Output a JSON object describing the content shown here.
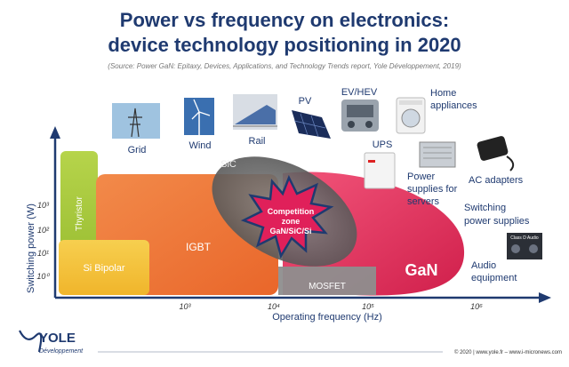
{
  "title_line1": "Power vs frequency on electronics:",
  "title_line2": "device technology positioning in 2020",
  "source": "(Source: Power GaN: Epitaxy, Devices, Applications, and Technology Trends report, Yole Développement, 2019)",
  "axes": {
    "y_label": "Switching power (W)",
    "x_label": "Operating frequency (Hz)",
    "y_ticks": [
      "10⁰",
      "10¹",
      "10²",
      "10³"
    ],
    "x_ticks": [
      "10³",
      "10⁴",
      "10⁵",
      "10⁶"
    ]
  },
  "regions": {
    "thyristor": "Thyristor",
    "si_bipolar": "Si Bipolar",
    "igbt": "IGBT",
    "sic": "SiC",
    "mosfet": "MOSFET",
    "gan": "GaN",
    "competition_line1": "Competition",
    "competition_line2": "zone",
    "competition_line3": "GaN/SiC/Si"
  },
  "applications": {
    "grid": "Grid",
    "wind": "Wind",
    "rail": "Rail",
    "pv": "PV",
    "ev_hev": "EV/HEV",
    "home_line1": "Home",
    "home_line2": "appliances",
    "ups": "UPS",
    "power_supplies_line1": "Power",
    "power_supplies_line2": "supplies for",
    "power_supplies_line3": "servers",
    "ac_adapters": "AC adapters",
    "switching_line1": "Switching",
    "switching_line2": "power supplies",
    "audio_line1": "Audio",
    "audio_line2": "equipment",
    "class_d_audio": "Class D Audio"
  },
  "footer": {
    "logo": "YOLE",
    "logo_sub": "Développement",
    "copyright": "© 2020 | www.yole.fr – www.i-micronews.com"
  },
  "colors": {
    "title": "#1f3a70",
    "thyristor": "#a8c93a",
    "si_bipolar": "#f5c13a",
    "igbt": "#f07a3c",
    "sic": "#777777",
    "gan": "#e8355f",
    "mosfet": "#8e8e8e",
    "axis": "#1f3a70"
  }
}
